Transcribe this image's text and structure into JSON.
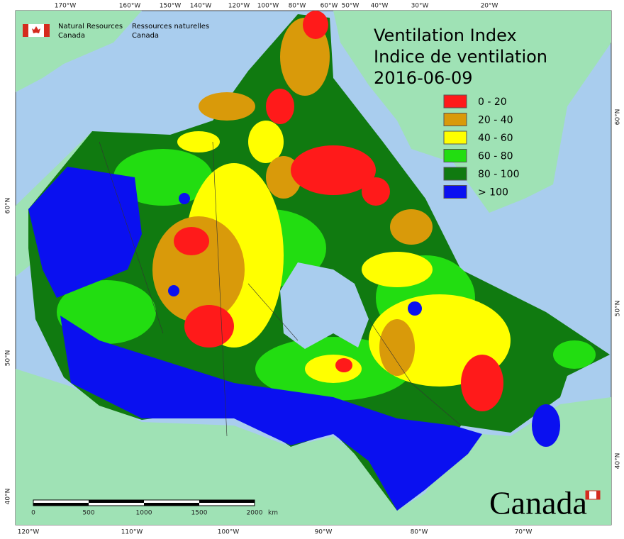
{
  "title": {
    "line1": "Ventilation Index",
    "line2": "Indice de ventilation",
    "date": "2016-06-09"
  },
  "legend": [
    {
      "label": "0 - 20",
      "color": "#ff1a1a"
    },
    {
      "label": "20 - 40",
      "color": "#d99a0a"
    },
    {
      "label": "40 - 60",
      "color": "#ffff00"
    },
    {
      "label": "60 - 80",
      "color": "#22dd11"
    },
    {
      "label": "80 - 100",
      "color": "#107a10"
    },
    {
      "label": "> 100",
      "color": "#0a10f0"
    }
  ],
  "agency": {
    "en": [
      "Natural Resources",
      "Canada"
    ],
    "fr": [
      "Ressources naturelles",
      "Canada"
    ]
  },
  "wordmark": "Canada",
  "top_longitudes": [
    "170°W",
    "160°W",
    "150°W",
    "140°W",
    "120°W",
    "100°W",
    "80°W",
    "60°W",
    "50°W",
    "40°W",
    "30°W",
    "20°W"
  ],
  "bottom_longitudes": [
    "120°W",
    "110°W",
    "100°W",
    "90°W",
    "80°W",
    "70°W"
  ],
  "left_latitudes": [
    "60°N",
    "50°N",
    "40°N"
  ],
  "right_latitudes": [
    "60°N",
    "50°N",
    "40°N"
  ],
  "scale": {
    "labels": [
      "0",
      "500",
      "1000",
      "1500",
      "2000"
    ],
    "unit": "km"
  }
}
